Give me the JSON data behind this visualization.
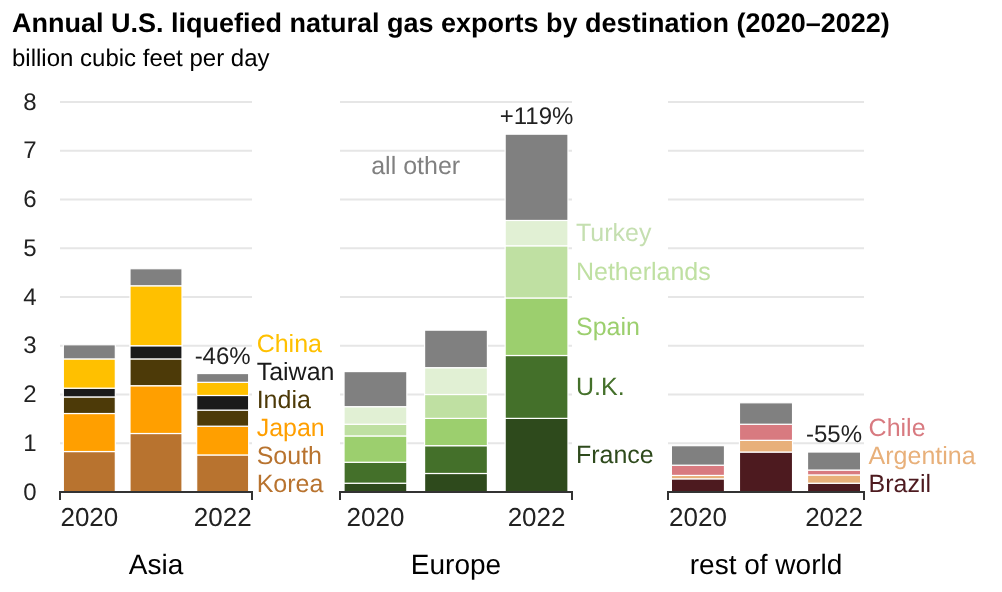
{
  "chart_data": [
    {
      "type": "bar",
      "title": "Annual U.S. liquefied natural gas exports by destination (2020–2022)",
      "subtitle": "billion cubic feet per day",
      "xlabel": "Asia",
      "categories": [
        "2020",
        null,
        "2022"
      ],
      "stacked": true,
      "ylim": [
        0,
        8
      ],
      "yticks": [
        0,
        1,
        2,
        3,
        4,
        5,
        6,
        7,
        8
      ],
      "grid": "y",
      "annotations": [
        {
          "text": "-46%",
          "x": "2022",
          "y": 2.43
        }
      ],
      "series": [
        {
          "name": "South Korea",
          "color": "#b8732f",
          "values": [
            0.83,
            1.2,
            0.76
          ]
        },
        {
          "name": "Japan",
          "color": "#ff9f00",
          "values": [
            0.78,
            0.98,
            0.59
          ]
        },
        {
          "name": "India",
          "color": "#4d3a08",
          "values": [
            0.34,
            0.55,
            0.33
          ]
        },
        {
          "name": "Taiwan",
          "color": "#1a1a1a",
          "values": [
            0.18,
            0.27,
            0.3
          ]
        },
        {
          "name": "China",
          "color": "#ffc000",
          "values": [
            0.6,
            1.23,
            0.27
          ]
        },
        {
          "color": "#808080",
          "values": [
            0.29,
            0.35,
            0.18
          ]
        }
      ]
    },
    {
      "type": "bar",
      "xlabel": "Europe",
      "categories": [
        "2020",
        null,
        "2022"
      ],
      "stacked": true,
      "ylim": [
        0,
        8
      ],
      "yticks": [
        0,
        1,
        2,
        3,
        4,
        5,
        6,
        7,
        8
      ],
      "grid": "y",
      "tick_labels": "x",
      "annotations": [
        {
          "text": "+119%",
          "x": "2022",
          "y": 7.34
        }
      ],
      "series": [
        {
          "name": "France",
          "color": "#2e4a1c",
          "values": [
            0.18,
            0.38,
            1.51
          ]
        },
        {
          "name": "U.K.",
          "color": "#44702a",
          "values": [
            0.43,
            0.57,
            1.29
          ]
        },
        {
          "name": "Spain",
          "color": "#9ccf6e",
          "values": [
            0.54,
            0.56,
            1.18
          ]
        },
        {
          "name": "Netherlands",
          "color": "#bfe0a2",
          "values": [
            0.24,
            0.49,
            1.07
          ]
        },
        {
          "name": "Turkey",
          "color": "#e1f0d4",
          "values": [
            0.36,
            0.55,
            0.52
          ]
        },
        {
          "name": "all other",
          "color": "#808080",
          "values": [
            0.72,
            0.77,
            1.77
          ]
        }
      ]
    },
    {
      "type": "bar",
      "xlabel": "rest of world",
      "categories": [
        "2020",
        null,
        "2022"
      ],
      "stacked": true,
      "ylim": [
        0,
        8
      ],
      "yticks": [
        0,
        1,
        2,
        3,
        4,
        5,
        6,
        7,
        8
      ],
      "grid": "y",
      "tick_labels": "x",
      "annotations": [
        {
          "text": "-55%",
          "x": "2022",
          "y": 0.82
        }
      ],
      "series": [
        {
          "name": "Brazil",
          "color": "#4d1a1f",
          "values": [
            0.27,
            0.82,
            0.18
          ]
        },
        {
          "name": "Argentina",
          "color": "#e8b07a",
          "values": [
            0.07,
            0.24,
            0.17
          ]
        },
        {
          "name": "Chile",
          "color": "#d87a80",
          "values": [
            0.21,
            0.33,
            0.1
          ]
        },
        {
          "color": "#808080",
          "values": [
            0.4,
            0.44,
            0.37
          ]
        }
      ]
    }
  ]
}
